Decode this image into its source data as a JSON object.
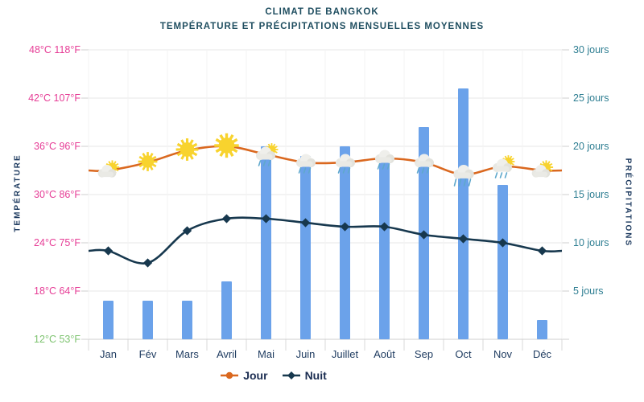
{
  "title": {
    "line1": "CLIMAT DE BANGKOK",
    "line2": "TEMPÉRATURE ET PRÉCIPITATIONS MENSUELLES MOYENNES"
  },
  "axes": {
    "left_title": "TEMPÉRATURE",
    "right_title": "PRÉCIPITATIONS",
    "temp_ticks": [
      {
        "label": "48°C 118°F",
        "c": 48,
        "color": "#e63d96"
      },
      {
        "label": "42°C 107°F",
        "c": 42,
        "color": "#e63d96"
      },
      {
        "label": "36°C 96°F",
        "c": 36,
        "color": "#e63d96"
      },
      {
        "label": "30°C 86°F",
        "c": 30,
        "color": "#e63d96"
      },
      {
        "label": "24°C 75°F",
        "c": 24,
        "color": "#e63d96"
      },
      {
        "label": "18°C 64°F",
        "c": 18,
        "color": "#e63d96"
      },
      {
        "label": "12°C 53°F",
        "c": 12,
        "color": "#7dc36f"
      }
    ],
    "precip_ticks": [
      {
        "label": "30 jours",
        "d": 30
      },
      {
        "label": "25 jours",
        "d": 25
      },
      {
        "label": "20 jours",
        "d": 20
      },
      {
        "label": "15 jours",
        "d": 15
      },
      {
        "label": "10 jours",
        "d": 10
      },
      {
        "label": "5 jours",
        "d": 5
      }
    ]
  },
  "chart_data": {
    "type": "bar+line combo",
    "categories": [
      "Jan",
      "Fév",
      "Mars",
      "Avril",
      "Mai",
      "Juin",
      "Juillet",
      "Août",
      "Sep",
      "Oct",
      "Nov",
      "Déc"
    ],
    "temp_axis": {
      "unit": "°C",
      "min": 12,
      "max": 48
    },
    "precip_axis": {
      "unit": "jours",
      "min": 0,
      "max": 30
    },
    "grid": true,
    "series": [
      {
        "name": "Précipitations",
        "type": "bar",
        "unit": "jours",
        "color": "#6ba2ea",
        "values": [
          4,
          4,
          4,
          6,
          20,
          19,
          20,
          19,
          22,
          26,
          16,
          2
        ]
      },
      {
        "name": "Jour",
        "type": "line",
        "unit": "°C",
        "color": "#da681f",
        "values": [
          33,
          34,
          35.5,
          36,
          35,
          34,
          34,
          34.5,
          34,
          32.5,
          33.5,
          33
        ],
        "icons": [
          {
            "type": "sun-cloud",
            "size": 1
          },
          {
            "type": "sun",
            "size": 0.9
          },
          {
            "type": "sun",
            "size": 1.05
          },
          {
            "type": "sun",
            "size": 1.15
          },
          {
            "type": "sun-cloud-rain",
            "size": 1
          },
          {
            "type": "cloud-rain",
            "size": 1
          },
          {
            "type": "cloud-rain",
            "size": 1
          },
          {
            "type": "cloud-rain",
            "size": 1
          },
          {
            "type": "cloud-rain",
            "size": 1
          },
          {
            "type": "cloud-heavy-rain",
            "size": 1
          },
          {
            "type": "sun-cloud-rain",
            "size": 1
          },
          {
            "type": "sun-cloud",
            "size": 1
          }
        ]
      },
      {
        "name": "Nuit",
        "type": "line",
        "unit": "°C",
        "color": "#17384e",
        "marker": "diamond",
        "values": [
          23,
          21.5,
          25.5,
          27,
          27,
          26.5,
          26,
          26,
          25,
          24.5,
          24,
          23
        ]
      }
    ]
  },
  "legend": [
    {
      "label": "Jour",
      "color": "#da681f",
      "marker": "dot"
    },
    {
      "label": "Nuit",
      "color": "#17384e",
      "marker": "diamond"
    }
  ],
  "colors": {
    "title": "#1f4e60",
    "temp_labels": "#e63d96",
    "temp_label_low": "#7dc36f",
    "precip_labels": "#2e7e92",
    "month_labels": "#1d3a5f",
    "bar": "#6ba2ea",
    "day_line": "#da681f",
    "night_line": "#17384e",
    "gridline": "#e7e7e7"
  }
}
